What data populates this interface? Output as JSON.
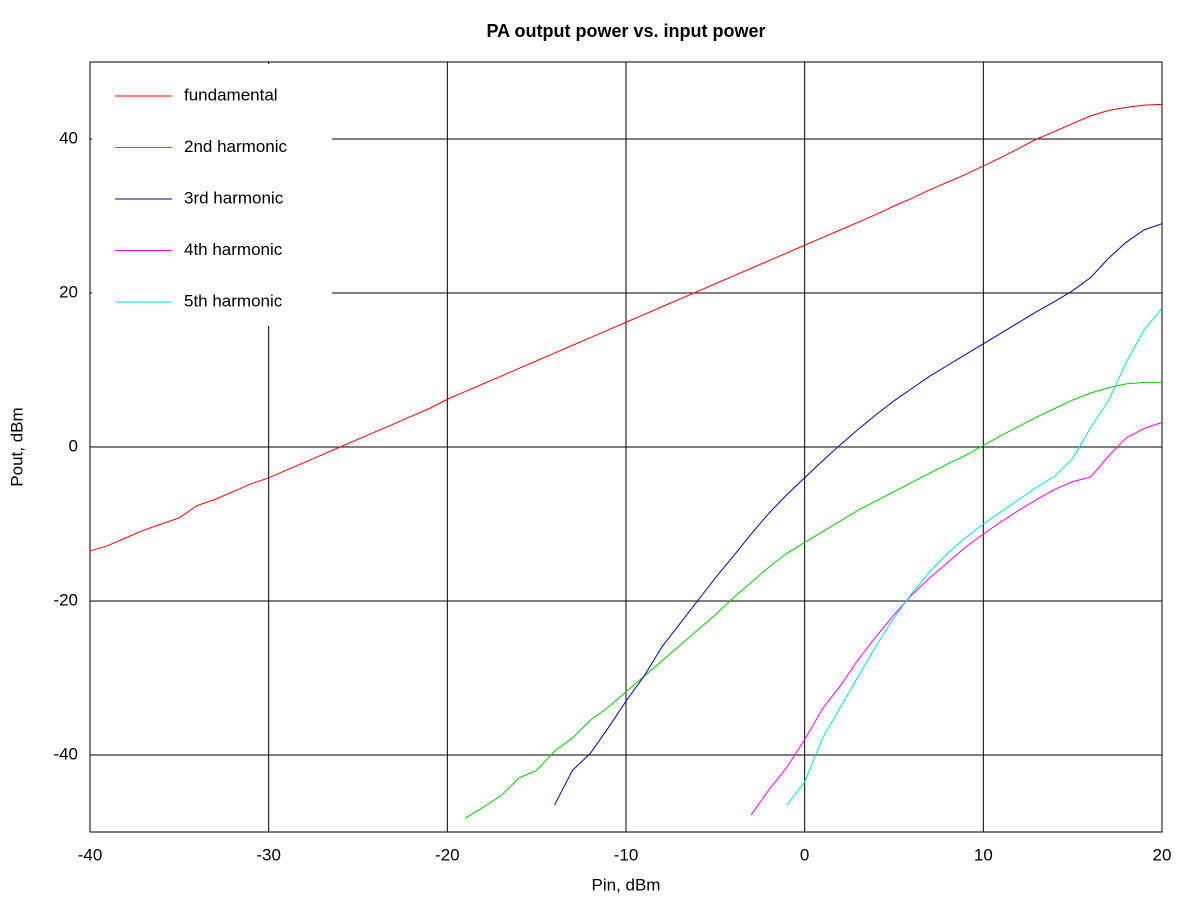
{
  "chart_data": {
    "type": "line",
    "title": "PA output power vs. input power",
    "x_label": "Pin, dBm",
    "y_label": "Pout, dBm",
    "x": [
      -40,
      -39,
      -38,
      -37,
      -36,
      -35,
      -34,
      -33,
      -32,
      -31,
      -30,
      -29,
      -28,
      -27,
      -26,
      -25,
      -24,
      -23,
      -22,
      -21,
      -20,
      -19,
      -18,
      -17,
      -16,
      -15,
      -14,
      -13,
      -12,
      -11,
      -10,
      -9,
      -8,
      -7,
      -6,
      -5,
      -4,
      -3,
      -2,
      -1,
      0,
      1,
      2,
      3,
      4,
      5,
      6,
      7,
      8,
      9,
      10,
      11,
      12,
      13,
      14,
      15,
      16,
      17,
      18,
      19,
      20
    ],
    "series": [
      {
        "name": "fundamental",
        "color": "#ff0000",
        "values": [
          -13.5,
          -12.8,
          -11.8,
          -10.8,
          -10,
          -9.2,
          -7.6,
          -6.8,
          -5.8,
          -4.8,
          -4,
          -3,
          -2,
          -1,
          0,
          1,
          2,
          3,
          4,
          5,
          6.2,
          7.2,
          8.2,
          9.2,
          10.2,
          11.2,
          12.2,
          13.2,
          14.2,
          15.2,
          16.2,
          17.2,
          18.2,
          19.2,
          20.2,
          21.2,
          22.2,
          23.2,
          24.2,
          25.2,
          26.2,
          27.2,
          28.2,
          29.2,
          30.2,
          31.3,
          32.3,
          33.4,
          34.4,
          35.4,
          36.5,
          37.6,
          38.8,
          40,
          41,
          42,
          43,
          43.7,
          44.1,
          44.4,
          44.5
        ]
      },
      {
        "name": "2nd harmonic",
        "color": "#00cc00",
        "values": [
          null,
          null,
          null,
          null,
          null,
          null,
          null,
          null,
          null,
          null,
          null,
          null,
          null,
          null,
          null,
          null,
          null,
          null,
          null,
          null,
          null,
          -48.2,
          -46.8,
          -45.3,
          -43,
          -42,
          -39.5,
          -37.8,
          -35.5,
          -33.8,
          -31.8,
          -29.8,
          -27.8,
          -25.8,
          -23.8,
          -21.8,
          -19.6,
          -17.6,
          -15.6,
          -13.8,
          -12.4,
          -11,
          -9.6,
          -8.2,
          -7,
          -5.8,
          -4.6,
          -3.4,
          -2.2,
          -1.1,
          0.2,
          1.5,
          2.7,
          3.9,
          5,
          6.1,
          7,
          7.7,
          8.2,
          8.4,
          8.4
        ]
      },
      {
        "name": "3rd harmonic",
        "color": "#0000b0",
        "values": [
          null,
          null,
          null,
          null,
          null,
          null,
          null,
          null,
          null,
          null,
          null,
          null,
          null,
          null,
          null,
          null,
          null,
          null,
          null,
          null,
          null,
          null,
          null,
          null,
          null,
          null,
          -46.5,
          -42,
          -39.8,
          -36.5,
          -33,
          -29.8,
          -26,
          -23,
          -20,
          -17,
          -14.2,
          -11.3,
          -8.6,
          -6.2,
          -4,
          -1.8,
          0.3,
          2.3,
          4.2,
          6,
          7.6,
          9.2,
          10.6,
          12,
          13.4,
          14.8,
          16.2,
          17.6,
          18.9,
          20.3,
          22,
          24.5,
          26.6,
          28.2,
          29
        ]
      },
      {
        "name": "4th harmonic",
        "color": "#ff00ff",
        "values": [
          null,
          null,
          null,
          null,
          null,
          null,
          null,
          null,
          null,
          null,
          null,
          null,
          null,
          null,
          null,
          null,
          null,
          null,
          null,
          null,
          null,
          null,
          null,
          null,
          null,
          null,
          null,
          null,
          null,
          null,
          null,
          null,
          null,
          null,
          null,
          null,
          null,
          -47.8,
          -44.5,
          -41.6,
          -38,
          -34,
          -31,
          -27.6,
          -24.6,
          -21.8,
          -19.2,
          -17,
          -15,
          -13,
          -11.3,
          -9.7,
          -8.2,
          -6.8,
          -5.5,
          -4.5,
          -3.9,
          -1.2,
          1.2,
          2.4,
          3.2
        ]
      },
      {
        "name": "5th harmonic",
        "color": "#00e0e0",
        "values": [
          null,
          null,
          null,
          null,
          null,
          null,
          null,
          null,
          null,
          null,
          null,
          null,
          null,
          null,
          null,
          null,
          null,
          null,
          null,
          null,
          null,
          null,
          null,
          null,
          null,
          null,
          null,
          null,
          null,
          null,
          null,
          null,
          null,
          null,
          null,
          null,
          null,
          null,
          null,
          -46.5,
          -43.5,
          -37.8,
          -33.8,
          -29.8,
          -25.8,
          -22.2,
          -19,
          -16.2,
          -13.8,
          -11.8,
          -10,
          -8.4,
          -6.8,
          -5.2,
          -3.8,
          -1.5,
          2.5,
          6,
          11,
          15.2,
          18
        ]
      }
    ],
    "xlim": [
      -40,
      20
    ],
    "xticks": [
      -40,
      -30,
      -20,
      -10,
      0,
      10,
      20
    ],
    "ylim": [
      -50,
      50
    ],
    "yticks": [
      -40,
      -20,
      0,
      20,
      40
    ],
    "grid": true,
    "legend": "upper left"
  }
}
